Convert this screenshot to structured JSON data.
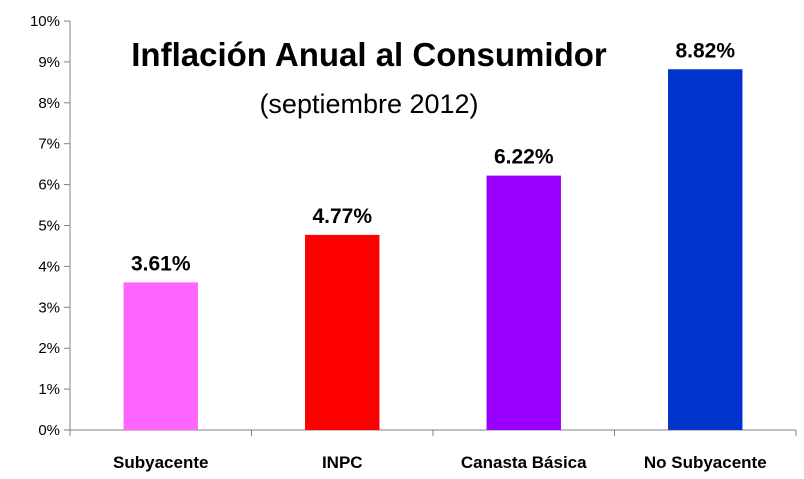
{
  "chart_data": {
    "type": "bar",
    "title": "Inflación Anual al Consumidor",
    "subtitle": "(septiembre 2012)",
    "categories": [
      "Subyacente",
      "INPC",
      "Canasta Básica",
      "No Subyacente"
    ],
    "values": [
      3.61,
      4.77,
      6.22,
      8.82
    ],
    "data_labels": [
      "3.61%",
      "4.77%",
      "6.22%",
      "8.82%"
    ],
    "colors": [
      "#ff66ff",
      "#ff0000",
      "#9900ff",
      "#0033cc"
    ],
    "ylim": [
      0,
      10
    ],
    "yticks": [
      0,
      1,
      2,
      3,
      4,
      5,
      6,
      7,
      8,
      9,
      10
    ],
    "ytick_labels": [
      "0%",
      "1%",
      "2%",
      "3%",
      "4%",
      "5%",
      "6%",
      "7%",
      "8%",
      "9%",
      "10%"
    ],
    "xlabel": "",
    "ylabel": "",
    "grid": false,
    "legend": "none"
  }
}
